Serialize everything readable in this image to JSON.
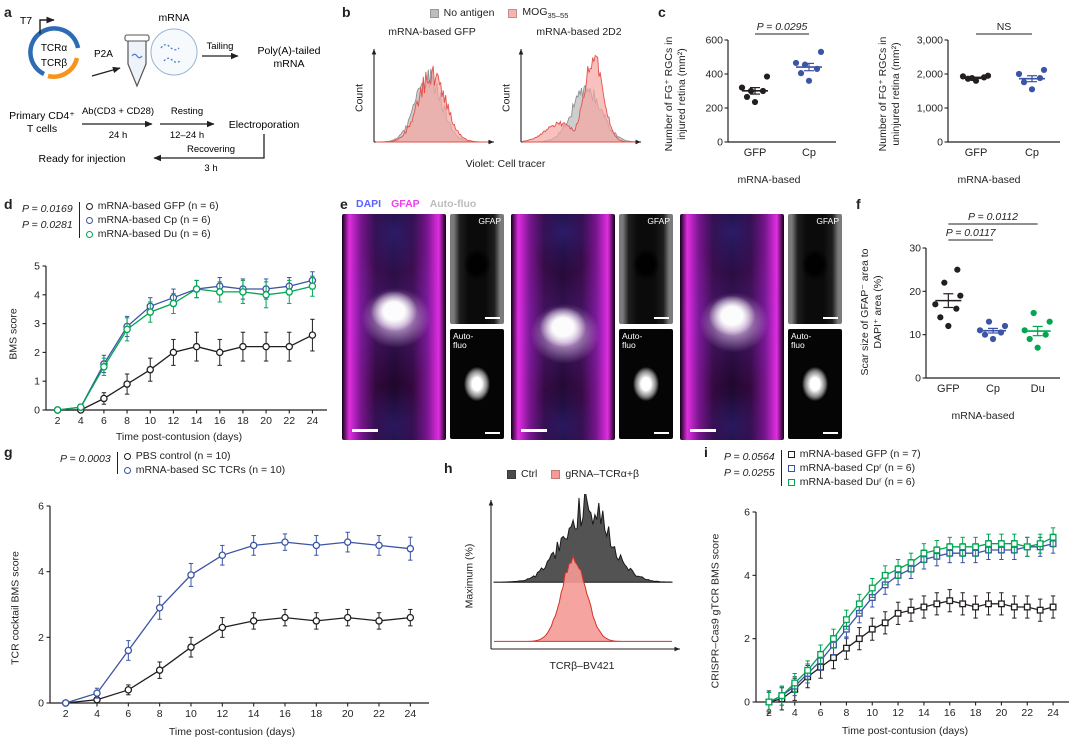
{
  "panels": {
    "a": {
      "label": "a",
      "t7": "T7",
      "tcra": "TCRα",
      "tcrb": "TCRβ",
      "p2a": "P2A",
      "mrna": "mRNA",
      "tailing": "Tailing",
      "polya_line1": "Poly(A)-tailed",
      "polya_line2": "mRNA",
      "primary_line1": "Primary CD4⁺",
      "primary_line2": "T cells",
      "ab_label": "Ab(CD3 + CD28)",
      "ab_time": "24 h",
      "resting_label": "Resting",
      "resting_time": "12–24 h",
      "electroporation": "Electroporation",
      "recovering_label": "Recovering",
      "recovering_time": "3 h",
      "ready": "Ready for injection"
    },
    "b": {
      "label": "b",
      "legend": [
        {
          "label": "No antigen",
          "color": "#bdbdbd"
        },
        {
          "label_main": "MOG",
          "label_sub": "35–55",
          "color": "#f6b3b0"
        }
      ]
    },
    "c": {
      "label": "c"
    },
    "d": {
      "label": "d"
    },
    "e": {
      "label": "e",
      "legend": [
        {
          "label": "DAPI",
          "color": "#5a62ff"
        },
        {
          "label": "GFAP",
          "color": "#f23cf2"
        },
        {
          "label": "Auto-fluo",
          "color": "#bdbdbd"
        }
      ],
      "inset_top": "GFAP",
      "inset_bottom_line1": "Auto-",
      "inset_bottom_line2": "fluo"
    },
    "f": {
      "label": "f"
    },
    "g": {
      "label": "g"
    },
    "h": {
      "label": "h",
      "legend": [
        {
          "label": "Ctrl",
          "color": "#4a4a4a"
        },
        {
          "label": "gRNA–TCRα+β",
          "color": "#f59a96"
        }
      ]
    },
    "i": {
      "label": "i"
    }
  },
  "chart_data": [
    {
      "id": "b1",
      "type": "histogram",
      "title": "mRNA-based GFP",
      "xlabel": "Violet: Cell tracer",
      "ylabel": "Count",
      "curves": [
        {
          "name": "No antigen",
          "color": "#8f8f8f",
          "fill": "#bdbdbd",
          "opacity": 0.75,
          "center": 0.47,
          "width": 0.12,
          "height": 0.72,
          "noise": 0.35,
          "seed": 11
        },
        {
          "name": "MOG35–55",
          "color": "#e2514c",
          "fill": "#f6a7a3",
          "opacity": 0.7,
          "center": 0.5,
          "width": 0.12,
          "height": 0.78,
          "noise": 0.35,
          "seed": 23
        }
      ]
    },
    {
      "id": "b2",
      "type": "histogram",
      "title": "mRNA-based 2D2",
      "xlabel": "Violet: Cell tracer",
      "ylabel": "Count",
      "curves": [
        {
          "name": "No antigen",
          "color": "#8f8f8f",
          "fill": "#bdbdbd",
          "opacity": 0.75,
          "center": 0.57,
          "width": 0.13,
          "height": 0.6,
          "noise": 0.35,
          "seed": 31
        },
        {
          "name": "MOG35–55",
          "color": "#e2514c",
          "fill": "#f6a7a3",
          "opacity": 0.7,
          "center": 0.63,
          "width": 0.085,
          "height": 0.95,
          "noise": 0.25,
          "seed": 47,
          "shoulder": {
            "center": 0.33,
            "width": 0.13,
            "h": 0.22
          }
        }
      ]
    },
    {
      "id": "c1",
      "type": "scatter",
      "ml": 34,
      "ylim": [
        0,
        600
      ],
      "yticks": [
        0,
        200,
        400,
        600
      ],
      "ylabel": "Number of FG⁺ RGCs in injured retina (mm²)",
      "xlabel": "mRNA-based",
      "groups": [
        {
          "name": "GFP",
          "color": "#231f20",
          "values": [
            235,
            265,
            300,
            320,
            385,
            300
          ]
        },
        {
          "name": "Cp",
          "color": "#3b54a5",
          "values": [
            360,
            405,
            430,
            465,
            530,
            455
          ]
        }
      ],
      "brackets": [
        {
          "from": 0,
          "to": 1,
          "label": "P = 0.0295",
          "y": 18
        }
      ]
    },
    {
      "id": "c2",
      "type": "scatter",
      "ml": 38,
      "ylim": [
        0,
        3000
      ],
      "yticks": [
        0,
        1000,
        2000,
        3000
      ],
      "ylabel": "Number of FG⁺ RGCs in uninjured retina (mm²)",
      "xlabel": "mRNA-based",
      "groups": [
        {
          "name": "GFP",
          "color": "#231f20",
          "values": [
            1800,
            1860,
            1900,
            1930,
            1950,
            1880
          ]
        },
        {
          "name": "Cp",
          "color": "#3b54a5",
          "values": [
            1550,
            1760,
            1880,
            2000,
            2120
          ]
        }
      ],
      "brackets": [
        {
          "from": 0,
          "to": 1,
          "label": "NS",
          "y": 18
        }
      ]
    },
    {
      "id": "d",
      "type": "line",
      "ml": 20,
      "marker": "circle",
      "x": [
        2,
        4,
        6,
        8,
        10,
        12,
        14,
        16,
        18,
        20,
        22,
        24
      ],
      "xticks": [
        2,
        4,
        6,
        8,
        10,
        12,
        14,
        16,
        18,
        20,
        22,
        24
      ],
      "xlim": [
        1,
        25
      ],
      "ylim": [
        0,
        5
      ],
      "yticks": [
        0,
        1,
        2,
        3,
        4,
        5
      ],
      "xlabel": "Time post-contusion (days)",
      "ylabel": "BMS score",
      "pvalues": [
        "P = 0.0169",
        "P = 0.0281"
      ],
      "series": [
        {
          "name": "mRNA-based GFP (n = 6)",
          "color": "#231f20",
          "values": [
            0,
            0,
            0.4,
            0.9,
            1.4,
            2.0,
            2.2,
            2.0,
            2.2,
            2.2,
            2.2,
            2.6
          ],
          "errors": [
            0,
            0.05,
            0.2,
            0.35,
            0.4,
            0.45,
            0.5,
            0.45,
            0.5,
            0.5,
            0.5,
            0.55
          ]
        },
        {
          "name": "mRNA-based Cp (n = 6)",
          "color": "#3b54a5",
          "values": [
            0,
            0.1,
            1.6,
            2.9,
            3.6,
            3.9,
            4.2,
            4.3,
            4.2,
            4.2,
            4.3,
            4.5
          ],
          "errors": [
            0,
            0.1,
            0.3,
            0.35,
            0.3,
            0.3,
            0.3,
            0.3,
            0.35,
            0.35,
            0.3,
            0.3
          ]
        },
        {
          "name": "mRNA-based Du (n = 6)",
          "color": "#00a651",
          "values": [
            0,
            0.1,
            1.5,
            2.8,
            3.4,
            3.7,
            4.2,
            4.1,
            4.1,
            4.0,
            4.1,
            4.3
          ],
          "errors": [
            0,
            0.1,
            0.3,
            0.4,
            0.35,
            0.35,
            0.3,
            0.35,
            0.4,
            0.45,
            0.4,
            0.35
          ]
        }
      ]
    },
    {
      "id": "f",
      "type": "scatter",
      "ml": 28,
      "ylim": [
        0,
        30
      ],
      "yticks": [
        0,
        10,
        20,
        30
      ],
      "ylabel": "Scar size of GFAP⁻ area to DAPI⁺ area (%)",
      "xlabel": "mRNA-based",
      "groups": [
        {
          "name": "GFP",
          "color": "#231f20",
          "values": [
            12,
            14,
            16,
            17,
            19,
            22,
            25
          ]
        },
        {
          "name": "Cp",
          "color": "#3b54a5",
          "values": [
            9,
            10,
            10.5,
            11,
            12,
            13
          ]
        },
        {
          "name": "Du",
          "color": "#00a651",
          "values": [
            7,
            9,
            10,
            11,
            13,
            15
          ]
        }
      ],
      "brackets": [
        {
          "from": 0,
          "to": 1,
          "label": "P = 0.0117",
          "y": 32
        },
        {
          "from": 0,
          "to": 2,
          "label": "P = 0.0112",
          "y": 16
        }
      ]
    },
    {
      "id": "g",
      "type": "line",
      "ml": 20,
      "marker": "circle",
      "x": [
        2,
        4,
        6,
        8,
        10,
        12,
        14,
        16,
        18,
        20,
        22,
        24
      ],
      "xticks": [
        2,
        4,
        6,
        8,
        10,
        12,
        14,
        16,
        18,
        20,
        22,
        24
      ],
      "xlim": [
        1,
        25
      ],
      "ylim": [
        0,
        6
      ],
      "yticks": [
        0,
        2,
        4,
        6
      ],
      "xlabel": "Time post-contusion (days)",
      "ylabel": "TCR cocktail BMS score",
      "pvalues": [
        "P = 0.0003"
      ],
      "series": [
        {
          "name": "PBS control (n = 10)",
          "color": "#231f20",
          "values": [
            0,
            0.1,
            0.4,
            1.0,
            1.7,
            2.3,
            2.5,
            2.6,
            2.5,
            2.6,
            2.5,
            2.6
          ],
          "errors": [
            0,
            0.05,
            0.15,
            0.25,
            0.3,
            0.3,
            0.25,
            0.25,
            0.25,
            0.25,
            0.25,
            0.25
          ]
        },
        {
          "name": "mRNA-based SC TCRs (n = 10)",
          "color": "#3b54a5",
          "values": [
            0,
            0.3,
            1.6,
            2.9,
            3.9,
            4.5,
            4.8,
            4.9,
            4.8,
            4.9,
            4.8,
            4.7
          ],
          "errors": [
            0,
            0.15,
            0.3,
            0.35,
            0.35,
            0.3,
            0.3,
            0.25,
            0.3,
            0.3,
            0.3,
            0.35
          ]
        }
      ]
    },
    {
      "id": "h",
      "type": "ridge",
      "xlabel": "TCRβ–BV421",
      "ylabel": "Maximum (%)",
      "curves": [
        {
          "name": "Ctrl",
          "color": "#1a1a1a",
          "fill": "#4a4a4a",
          "opacity": 0.95,
          "center": 0.52,
          "width": 0.13,
          "height": 0.5,
          "base": 0.58,
          "noise": 0.5,
          "seed": 7
        },
        {
          "name": "gRNA–TCRα+β",
          "color": "#d6322a",
          "fill": "#f59a96",
          "opacity": 0.9,
          "center": 0.45,
          "width": 0.07,
          "height": 0.55,
          "base": 0.97,
          "noise": 0.12,
          "seed": 19
        }
      ]
    },
    {
      "id": "i",
      "type": "line",
      "ml": 20,
      "marker": "square",
      "x": [
        2,
        3,
        4,
        5,
        6,
        7,
        8,
        9,
        10,
        11,
        12,
        13,
        14,
        15,
        16,
        17,
        18,
        19,
        20,
        21,
        22,
        23,
        24
      ],
      "xticks": [
        2,
        4,
        6,
        8,
        10,
        12,
        14,
        16,
        18,
        20,
        22,
        24
      ],
      "xlim": [
        1,
        25
      ],
      "ylim": [
        0,
        6
      ],
      "yticks": [
        0,
        2,
        4,
        6
      ],
      "xlabel": "Time post-contusion (days)",
      "ylabel": "CRISPR–Cas9 gTCR BMS score",
      "pvalues": [
        "P = 0.0564",
        "P = 0.0255"
      ],
      "series": [
        {
          "name": "mRNA-based GFP (n = 7)",
          "color": "#231f20",
          "values": [
            0,
            0.1,
            0.4,
            0.8,
            1.1,
            1.4,
            1.7,
            2.0,
            2.3,
            2.5,
            2.8,
            2.9,
            3.0,
            3.1,
            3.2,
            3.1,
            3.0,
            3.1,
            3.1,
            3.0,
            3.0,
            2.9,
            3.0
          ],
          "errors": 0.35
        },
        {
          "name": "mRNA-based Cpʳ (n = 6)",
          "color": "#3b54a5",
          "values": [
            0,
            0.2,
            0.5,
            0.9,
            1.3,
            1.8,
            2.3,
            2.8,
            3.3,
            3.7,
            4.0,
            4.2,
            4.5,
            4.6,
            4.7,
            4.7,
            4.7,
            4.8,
            4.8,
            4.8,
            4.9,
            4.9,
            5.0
          ],
          "errors": 0.3
        },
        {
          "name": "mRNA-based Duʳ (n = 6)",
          "color": "#00a651",
          "values": [
            0,
            0.2,
            0.6,
            1.0,
            1.5,
            2.0,
            2.6,
            3.1,
            3.6,
            4.0,
            4.2,
            4.4,
            4.7,
            4.8,
            4.9,
            4.9,
            4.9,
            5.0,
            5.0,
            5.0,
            4.9,
            5.0,
            5.2
          ],
          "errors": 0.3
        }
      ]
    }
  ]
}
